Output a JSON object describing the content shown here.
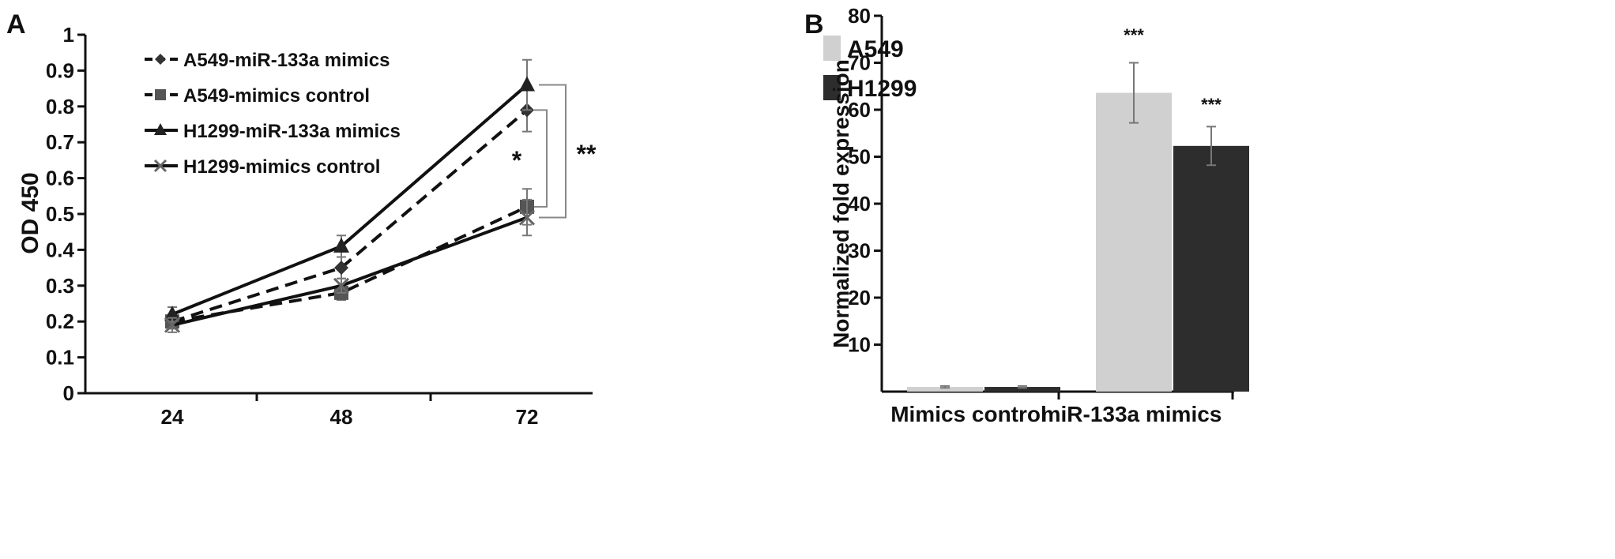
{
  "panels": [
    {
      "letter": "A"
    },
    {
      "letter": "B"
    }
  ],
  "chart_data": [
    {
      "type": "line",
      "ylabel": "OD 450",
      "xlabel": "",
      "ylim": [
        0,
        1
      ],
      "yticks": [
        0,
        0.1,
        0.2,
        0.3,
        0.4,
        0.5,
        0.6,
        0.7,
        0.8,
        0.9,
        1
      ],
      "ytick_labels": [
        "0",
        "0.1",
        "0.2",
        "0.3",
        "0.4",
        "0.5",
        "0.6",
        "0.7",
        "0.8",
        "0.9",
        "1"
      ],
      "categories": [
        "24",
        "48",
        "72"
      ],
      "legend_position": "top-left",
      "series": [
        {
          "name": "A549-miR-133a mimics",
          "values": [
            0.2,
            0.35,
            0.79
          ],
          "errors": [
            0.02,
            0.03,
            0.06
          ],
          "marker": "diamond",
          "dash": "dashed"
        },
        {
          "name": "A549-mimics control",
          "values": [
            0.2,
            0.28,
            0.52
          ],
          "errors": [
            0.02,
            0.02,
            0.05
          ],
          "marker": "square",
          "dash": "dashed"
        },
        {
          "name": "H1299-miR-133a mimics",
          "values": [
            0.22,
            0.41,
            0.86
          ],
          "errors": [
            0.02,
            0.03,
            0.07
          ],
          "marker": "triangle",
          "dash": "solid"
        },
        {
          "name": "H1299-mimics control",
          "values": [
            0.19,
            0.3,
            0.49
          ],
          "errors": [
            0.02,
            0.02,
            0.05
          ],
          "marker": "x",
          "dash": "solid"
        }
      ],
      "annotations": [
        {
          "text": "*",
          "between": [
            "A549-miR-133a mimics",
            "A549-mimics control"
          ],
          "at": "72"
        },
        {
          "text": "**",
          "between": [
            "H1299-miR-133a mimics",
            "H1299-mimics control"
          ],
          "at": "72"
        }
      ]
    },
    {
      "type": "bar",
      "ylabel": "Normalized  fold expression",
      "xlabel": "",
      "ylim": [
        0,
        80
      ],
      "yticks": [
        10,
        20,
        30,
        40,
        50,
        60,
        70,
        80
      ],
      "ytick_labels": [
        "10",
        "20",
        "30",
        "40",
        "50",
        "60",
        "70",
        "80"
      ],
      "categories": [
        "Mimics control",
        "miR-133a  mimics"
      ],
      "legend_position": "top-left",
      "series": [
        {
          "name": "A549",
          "color": "#d0d0d0",
          "values": [
            1.0,
            63.6
          ],
          "errors": [
            0.2,
            6.4
          ]
        },
        {
          "name": "H1299",
          "color": "#2d2d2d",
          "values": [
            1.0,
            52.3
          ],
          "errors": [
            0.2,
            4.1
          ]
        }
      ],
      "annotations": [
        {
          "text": "***",
          "series": "A549",
          "category": "miR-133a  mimics"
        },
        {
          "text": "***",
          "series": "H1299",
          "category": "miR-133a  mimics"
        }
      ]
    }
  ]
}
